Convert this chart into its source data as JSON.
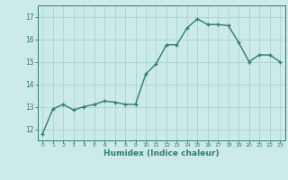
{
  "x": [
    0,
    1,
    2,
    3,
    4,
    5,
    6,
    7,
    8,
    9,
    10,
    11,
    12,
    13,
    14,
    15,
    16,
    17,
    18,
    19,
    20,
    21,
    22,
    23
  ],
  "y": [
    11.8,
    12.9,
    13.1,
    12.85,
    13.0,
    13.1,
    13.25,
    13.2,
    13.1,
    13.1,
    14.45,
    14.9,
    15.75,
    15.75,
    16.5,
    16.9,
    16.65,
    16.65,
    16.6,
    15.85,
    15.0,
    15.3,
    15.3,
    15.0
  ],
  "line_color": "#2e7d6e",
  "marker": "+",
  "marker_color": "#2e7d6e",
  "bg_color": "#cceae7",
  "grid_color": "#aad4d0",
  "axis_color": "#2e7d6e",
  "tick_color": "#2e7d6e",
  "xlabel": "Humidex (Indice chaleur)",
  "xlabel_color": "#2e7d6e",
  "ylim": [
    11.5,
    17.5
  ],
  "xlim": [
    -0.5,
    23.5
  ],
  "yticks": [
    12,
    13,
    14,
    15,
    16,
    17
  ],
  "xticks": [
    0,
    1,
    2,
    3,
    4,
    5,
    6,
    7,
    8,
    9,
    10,
    11,
    12,
    13,
    14,
    15,
    16,
    17,
    18,
    19,
    20,
    21,
    22,
    23
  ],
  "linewidth": 1.0,
  "markersize": 3.5
}
